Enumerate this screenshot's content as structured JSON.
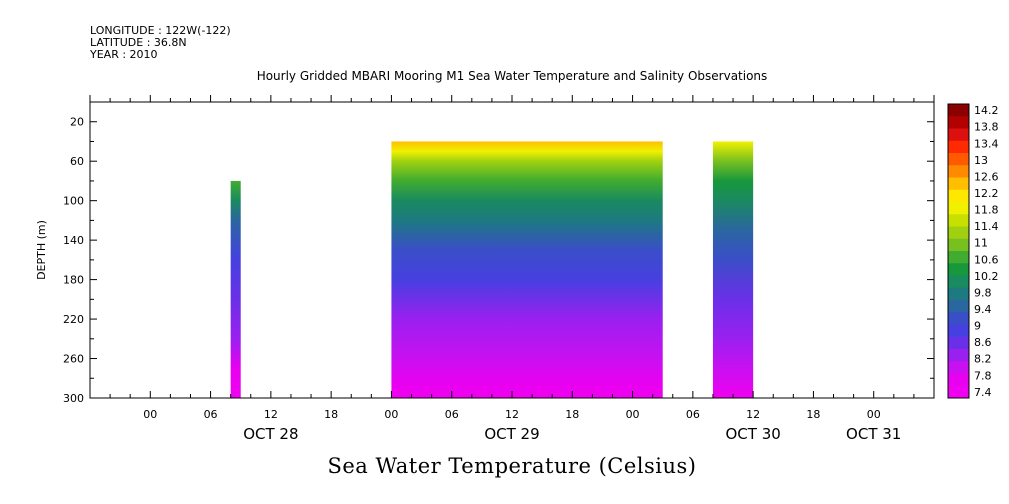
{
  "header": {
    "longitude": "LONGITUDE : 122W(-122)",
    "latitude": "LATITUDE : 36.8N",
    "year": "YEAR : 2010"
  },
  "chart_data": {
    "type": "heatmap",
    "title": "Hourly Gridded MBARI Mooring M1 Sea Water Temperature and Salinity Observations",
    "footer": "Sea Water Temperature (Celsius)",
    "ylabel": "DEPTH (m)",
    "ylim": [
      300,
      0
    ],
    "y_ticks": [
      20,
      60,
      100,
      140,
      180,
      220,
      260,
      300
    ],
    "x_range_hours": [
      -6,
      78
    ],
    "x_hour_ticks": [
      {
        "h": 0,
        "label": "00"
      },
      {
        "h": 6,
        "label": "06"
      },
      {
        "h": 12,
        "label": "12"
      },
      {
        "h": 18,
        "label": "18"
      },
      {
        "h": 24,
        "label": "00"
      },
      {
        "h": 30,
        "label": "06"
      },
      {
        "h": 36,
        "label": "12"
      },
      {
        "h": 42,
        "label": "18"
      },
      {
        "h": 48,
        "label": "00"
      },
      {
        "h": 54,
        "label": "06"
      },
      {
        "h": 60,
        "label": "12"
      },
      {
        "h": 66,
        "label": "18"
      },
      {
        "h": 72,
        "label": "00"
      }
    ],
    "x_day_labels": [
      {
        "h": 12,
        "label": "OCT 28"
      },
      {
        "h": 36,
        "label": "OCT 29"
      },
      {
        "h": 60,
        "label": "OCT 30"
      },
      {
        "h": 72,
        "label": "OCT 31"
      }
    ],
    "colorbar": {
      "levels": [
        "14.2",
        "13.8",
        "13.4",
        "13",
        "12.6",
        "12.2",
        "11.8",
        "11.4",
        "11",
        "10.6",
        "10.2",
        "9.8",
        "9.4",
        "9",
        "8.6",
        "8.2",
        "7.8",
        "7.4"
      ],
      "colors": [
        "#8b0000",
        "#b30000",
        "#dd1010",
        "#ff2a00",
        "#ff5a00",
        "#ff8a00",
        "#ffbe00",
        "#ffe800",
        "#f0f000",
        "#c8e000",
        "#a0d010",
        "#78c020",
        "#40ac30",
        "#18983c",
        "#1a8a60",
        "#1c7a80",
        "#2a66a0",
        "#3a4ec8",
        "#4640e0",
        "#6a30e8",
        "#9a20f0",
        "#c810f0",
        "#e800f0",
        "#f000f0"
      ]
    },
    "segments": [
      {
        "start_h": 8,
        "end_h": 9,
        "top_depth": 80,
        "profile": [
          [
            80,
            10.6
          ],
          [
            100,
            10.0
          ],
          [
            120,
            9.6
          ],
          [
            160,
            9.1
          ],
          [
            200,
            8.7
          ],
          [
            240,
            8.3
          ],
          [
            270,
            7.9
          ],
          [
            300,
            7.4
          ]
        ]
      },
      {
        "start_h": 24,
        "end_h": 51,
        "top_depth": 40,
        "profile": [
          [
            40,
            12.4
          ],
          [
            50,
            11.9
          ],
          [
            60,
            11.3
          ],
          [
            80,
            10.7
          ],
          [
            100,
            10.2
          ],
          [
            120,
            9.8
          ],
          [
            150,
            9.3
          ],
          [
            180,
            8.9
          ],
          [
            220,
            8.5
          ],
          [
            260,
            8.1
          ],
          [
            285,
            7.8
          ],
          [
            300,
            7.5
          ]
        ]
      },
      {
        "start_h": 56,
        "end_h": 60,
        "top_depth": 40,
        "profile": [
          [
            40,
            11.8
          ],
          [
            60,
            11.0
          ],
          [
            80,
            10.5
          ],
          [
            100,
            10.0
          ],
          [
            130,
            9.6
          ],
          [
            160,
            9.2
          ],
          [
            200,
            8.8
          ],
          [
            240,
            8.4
          ],
          [
            270,
            8.0
          ],
          [
            300,
            7.6
          ]
        ]
      }
    ]
  }
}
